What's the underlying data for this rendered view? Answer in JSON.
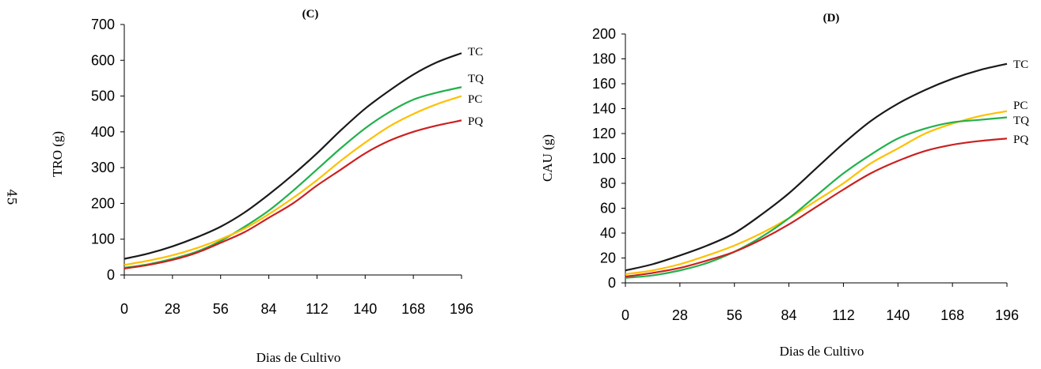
{
  "page_number": "45",
  "chart_data": [
    {
      "type": "line",
      "title": "(C)",
      "xlabel": "Dias de Cultivo",
      "ylabel": "TRO (g)",
      "xlim": [
        0,
        196
      ],
      "ylim": [
        0,
        700
      ],
      "xticks": [
        "0",
        "28",
        "56",
        "84",
        "112",
        "140",
        "168",
        "196"
      ],
      "yticks": [
        "0",
        "100",
        "200",
        "300",
        "400",
        "500",
        "600",
        "700"
      ],
      "x": [
        0,
        14,
        28,
        42,
        56,
        70,
        84,
        98,
        112,
        126,
        140,
        154,
        168,
        182,
        196
      ],
      "series": [
        {
          "name": "TC",
          "color": "#1a1a1a",
          "values": [
            45,
            60,
            80,
            105,
            135,
            175,
            225,
            280,
            340,
            405,
            465,
            515,
            560,
            595,
            620
          ]
        },
        {
          "name": "TQ",
          "color": "#22b14c",
          "values": [
            20,
            30,
            45,
            65,
            95,
            135,
            180,
            235,
            295,
            355,
            410,
            455,
            490,
            510,
            525
          ]
        },
        {
          "name": "PC",
          "color": "#ffc000",
          "values": [
            28,
            40,
            55,
            75,
            100,
            130,
            170,
            215,
            265,
            320,
            370,
            415,
            450,
            478,
            500
          ]
        },
        {
          "name": "PQ",
          "color": "#cc2020",
          "values": [
            18,
            28,
            42,
            62,
            90,
            120,
            160,
            200,
            250,
            295,
            340,
            375,
            400,
            418,
            432
          ]
        }
      ]
    },
    {
      "type": "line",
      "title": "(D)",
      "xlabel": "Dias de Cultivo",
      "ylabel": "CAU (g)",
      "xlim": [
        0,
        196
      ],
      "ylim": [
        0,
        200
      ],
      "xticks": [
        "0",
        "28",
        "56",
        "84",
        "112",
        "140",
        "168",
        "196"
      ],
      "yticks": [
        "0",
        "20",
        "40",
        "60",
        "80",
        "100",
        "120",
        "140",
        "160",
        "180",
        "200"
      ],
      "x": [
        0,
        14,
        28,
        42,
        56,
        70,
        84,
        98,
        112,
        126,
        140,
        154,
        168,
        182,
        196
      ],
      "series": [
        {
          "name": "TC",
          "color": "#1a1a1a",
          "values": [
            10,
            15,
            22,
            30,
            40,
            55,
            72,
            92,
            112,
            130,
            144,
            155,
            164,
            171,
            176
          ]
        },
        {
          "name": "PC",
          "color": "#ffc000",
          "values": [
            7,
            10,
            15,
            22,
            30,
            40,
            52,
            66,
            80,
            96,
            108,
            120,
            128,
            134,
            138
          ]
        },
        {
          "name": "TQ",
          "color": "#22b14c",
          "values": [
            4,
            6,
            10,
            16,
            25,
            37,
            52,
            70,
            88,
            103,
            116,
            124,
            129,
            131,
            133
          ]
        },
        {
          "name": "PQ",
          "color": "#cc2020",
          "values": [
            5,
            8,
            12,
            18,
            25,
            35,
            47,
            61,
            75,
            88,
            98,
            106,
            111,
            114,
            116
          ]
        }
      ]
    }
  ]
}
